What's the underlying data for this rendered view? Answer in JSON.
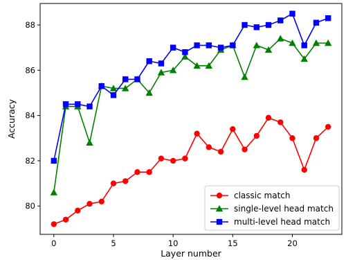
{
  "chart_data": {
    "type": "line",
    "title": "",
    "xlabel": "Layer number",
    "ylabel": "Accuracy",
    "xlim": [
      -1.15,
      24.15
    ],
    "ylim": [
      78.75,
      88.95
    ],
    "x_ticks": [
      0,
      5,
      10,
      15,
      20
    ],
    "y_ticks": [
      80,
      82,
      84,
      86,
      88
    ],
    "grid": false,
    "legend_position": "lower-right",
    "x": [
      0,
      1,
      2,
      3,
      4,
      5,
      6,
      7,
      8,
      9,
      10,
      11,
      12,
      13,
      14,
      15,
      16,
      17,
      18,
      19,
      20,
      21,
      22,
      23
    ],
    "series": [
      {
        "name": "classic match",
        "color": "#ff0000",
        "marker": "circle",
        "values": [
          79.2,
          79.4,
          79.8,
          80.1,
          80.2,
          81.0,
          81.1,
          81.5,
          81.5,
          82.1,
          82.0,
          82.1,
          83.2,
          82.6,
          82.4,
          83.4,
          82.5,
          83.1,
          83.9,
          83.7,
          83.0,
          81.6,
          83.0,
          83.5
        ]
      },
      {
        "name": "single-level head match",
        "color": "#008000",
        "marker": "triangle",
        "values": [
          80.6,
          84.4,
          84.4,
          82.8,
          85.3,
          85.2,
          85.2,
          85.6,
          85.0,
          85.9,
          86.0,
          86.6,
          86.2,
          86.2,
          86.9,
          87.1,
          85.7,
          87.1,
          86.9,
          87.4,
          87.2,
          86.5,
          87.2,
          87.2
        ]
      },
      {
        "name": "multi-level head match",
        "color": "#0000ff",
        "marker": "square",
        "values": [
          82.0,
          84.5,
          84.5,
          84.4,
          85.3,
          84.9,
          85.6,
          85.6,
          86.4,
          86.3,
          87.0,
          86.8,
          87.1,
          87.1,
          87.0,
          87.1,
          88.0,
          87.9,
          88.0,
          88.2,
          88.5,
          87.1,
          88.1,
          88.3
        ]
      }
    ]
  }
}
